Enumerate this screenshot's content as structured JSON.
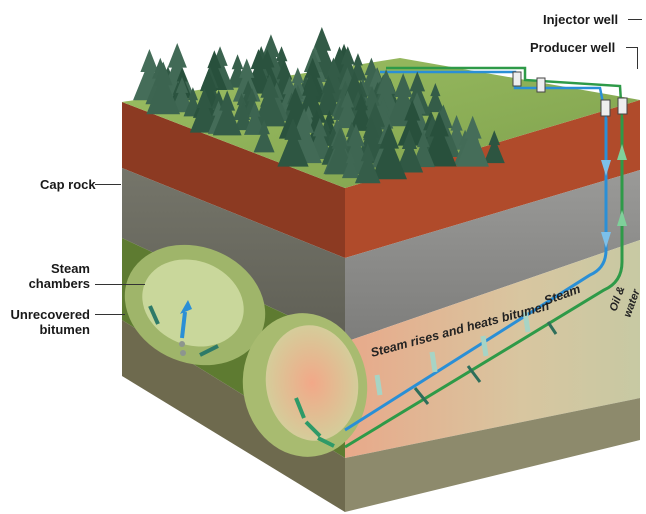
{
  "labels": {
    "injector_well": "Injector well",
    "producer_well": "Producer well",
    "cap_rock": "Cap rock",
    "steam_chambers_line1": "Steam",
    "steam_chambers_line2": "chambers",
    "unrecovered_line1": "Unrecovered",
    "unrecovered_line2": "bitumen",
    "steam_rises": "Steam rises and heats bitumen",
    "steam": "Steam",
    "oil_water_line1": "Oil &",
    "oil_water_line2": "water"
  },
  "colors": {
    "grass": "#8fb35a",
    "soil": "#a6452a",
    "cap_rock": "#6d6d60",
    "reservoir_rock": "#8a8a88",
    "bitumen_zone": "#5f7a32",
    "chamber": "#c7d394",
    "steam_pipe": "#2a8fd6",
    "producer_pipe": "#2e9a48"
  }
}
